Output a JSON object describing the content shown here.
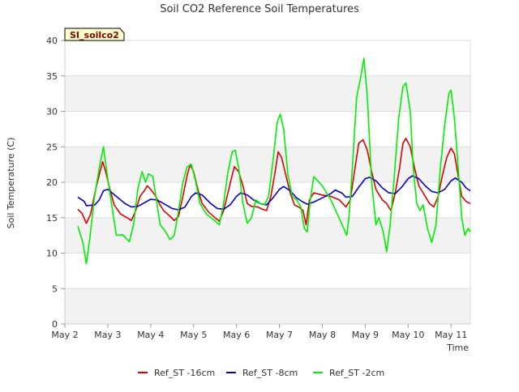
{
  "chart_data": {
    "type": "line",
    "title": "Soil CO2 Reference Soil Temperatures",
    "xlabel": "Time",
    "ylabel": "Soil Temperature (C)",
    "xlim": [
      2.0,
      11.45
    ],
    "ylim": [
      0,
      40
    ],
    "x_ticks": [
      {
        "value": 2,
        "label": "May 2"
      },
      {
        "value": 3,
        "label": "May 3"
      },
      {
        "value": 4,
        "label": "May 4"
      },
      {
        "value": 5,
        "label": "May 5"
      },
      {
        "value": 6,
        "label": "May 6"
      },
      {
        "value": 7,
        "label": "May 7"
      },
      {
        "value": 8,
        "label": "May 8"
      },
      {
        "value": 9,
        "label": "May 9"
      },
      {
        "value": 10,
        "label": "May 10"
      },
      {
        "value": 11,
        "label": "May 11"
      }
    ],
    "y_ticks": [
      0,
      5,
      10,
      15,
      20,
      25,
      30,
      35,
      40
    ],
    "grid": true,
    "banded_background": true,
    "site_label": "SI_soilco2",
    "legend_position": "bottom",
    "series": [
      {
        "name": "Ref_ST -16cm",
        "color": "#dd0000",
        "points": [
          [
            2.3,
            16.2
          ],
          [
            2.4,
            15.6
          ],
          [
            2.5,
            14.2
          ],
          [
            2.6,
            15.5
          ],
          [
            2.7,
            18.5
          ],
          [
            2.8,
            21.0
          ],
          [
            2.88,
            22.9
          ],
          [
            2.95,
            21.5
          ],
          [
            3.05,
            19.0
          ],
          [
            3.15,
            16.8
          ],
          [
            3.3,
            15.5
          ],
          [
            3.45,
            15.0
          ],
          [
            3.55,
            14.6
          ],
          [
            3.65,
            16.0
          ],
          [
            3.75,
            18.0
          ],
          [
            3.85,
            18.8
          ],
          [
            3.92,
            19.5
          ],
          [
            4.0,
            19.0
          ],
          [
            4.1,
            18.2
          ],
          [
            4.2,
            17.0
          ],
          [
            4.3,
            16.0
          ],
          [
            4.45,
            15.2
          ],
          [
            4.55,
            14.6
          ],
          [
            4.65,
            15.2
          ],
          [
            4.75,
            18.0
          ],
          [
            4.85,
            21.0
          ],
          [
            4.92,
            22.5
          ],
          [
            5.0,
            21.5
          ],
          [
            5.1,
            19.0
          ],
          [
            5.2,
            17.0
          ],
          [
            5.35,
            15.8
          ],
          [
            5.5,
            15.0
          ],
          [
            5.6,
            14.5
          ],
          [
            5.7,
            16.0
          ],
          [
            5.8,
            18.5
          ],
          [
            5.88,
            20.5
          ],
          [
            5.95,
            22.2
          ],
          [
            6.05,
            21.5
          ],
          [
            6.15,
            19.5
          ],
          [
            6.25,
            17.0
          ],
          [
            6.35,
            16.6
          ],
          [
            6.5,
            16.5
          ],
          [
            6.6,
            16.2
          ],
          [
            6.7,
            16.0
          ],
          [
            6.8,
            18.0
          ],
          [
            6.9,
            21.5
          ],
          [
            6.97,
            24.3
          ],
          [
            7.05,
            23.5
          ],
          [
            7.15,
            21.0
          ],
          [
            7.25,
            18.5
          ],
          [
            7.35,
            16.8
          ],
          [
            7.45,
            16.5
          ],
          [
            7.55,
            16.0
          ],
          [
            7.62,
            14.0
          ],
          [
            7.7,
            17.5
          ],
          [
            7.8,
            18.5
          ],
          [
            8.0,
            18.2
          ],
          [
            8.2,
            18.0
          ],
          [
            8.4,
            17.5
          ],
          [
            8.55,
            16.5
          ],
          [
            8.65,
            17.5
          ],
          [
            8.75,
            21.5
          ],
          [
            8.85,
            25.5
          ],
          [
            8.95,
            26.0
          ],
          [
            9.05,
            24.5
          ],
          [
            9.15,
            21.5
          ],
          [
            9.25,
            19.0
          ],
          [
            9.4,
            17.5
          ],
          [
            9.5,
            17.0
          ],
          [
            9.6,
            16.0
          ],
          [
            9.7,
            18.5
          ],
          [
            9.8,
            22.0
          ],
          [
            9.88,
            25.5
          ],
          [
            9.95,
            26.2
          ],
          [
            10.05,
            25.0
          ],
          [
            10.15,
            22.0
          ],
          [
            10.25,
            19.5
          ],
          [
            10.4,
            18.0
          ],
          [
            10.5,
            17.0
          ],
          [
            10.6,
            16.5
          ],
          [
            10.7,
            18.0
          ],
          [
            10.8,
            21.0
          ],
          [
            10.9,
            23.5
          ],
          [
            11.0,
            24.8
          ],
          [
            11.08,
            24.0
          ],
          [
            11.15,
            21.5
          ],
          [
            11.25,
            18.0
          ],
          [
            11.35,
            17.3
          ],
          [
            11.45,
            17.0
          ]
        ]
      },
      {
        "name": "Ref_ST -8cm",
        "color": "#0000cc",
        "points": [
          [
            2.3,
            17.9
          ],
          [
            2.45,
            17.3
          ],
          [
            2.5,
            16.7
          ],
          [
            2.7,
            16.8
          ],
          [
            2.8,
            17.5
          ],
          [
            2.9,
            18.8
          ],
          [
            3.0,
            19.0
          ],
          [
            3.2,
            18.0
          ],
          [
            3.4,
            17.0
          ],
          [
            3.55,
            16.5
          ],
          [
            3.7,
            16.6
          ],
          [
            3.85,
            17.1
          ],
          [
            4.0,
            17.6
          ],
          [
            4.15,
            17.5
          ],
          [
            4.3,
            17.0
          ],
          [
            4.5,
            16.3
          ],
          [
            4.65,
            16.1
          ],
          [
            4.8,
            16.5
          ],
          [
            4.95,
            18.0
          ],
          [
            5.05,
            18.5
          ],
          [
            5.2,
            18.2
          ],
          [
            5.4,
            17.0
          ],
          [
            5.55,
            16.3
          ],
          [
            5.7,
            16.2
          ],
          [
            5.85,
            16.8
          ],
          [
            6.0,
            18.0
          ],
          [
            6.1,
            18.5
          ],
          [
            6.25,
            18.2
          ],
          [
            6.4,
            17.5
          ],
          [
            6.55,
            17.0
          ],
          [
            6.7,
            16.8
          ],
          [
            6.85,
            17.8
          ],
          [
            7.0,
            19.0
          ],
          [
            7.1,
            19.4
          ],
          [
            7.25,
            18.8
          ],
          [
            7.4,
            17.8
          ],
          [
            7.55,
            17.2
          ],
          [
            7.65,
            16.9
          ],
          [
            7.8,
            17.2
          ],
          [
            8.0,
            17.8
          ],
          [
            8.2,
            18.4
          ],
          [
            8.3,
            18.9
          ],
          [
            8.45,
            18.5
          ],
          [
            8.55,
            17.9
          ],
          [
            8.7,
            18.0
          ],
          [
            8.85,
            19.3
          ],
          [
            9.0,
            20.5
          ],
          [
            9.1,
            20.7
          ],
          [
            9.25,
            20.2
          ],
          [
            9.4,
            19.2
          ],
          [
            9.55,
            18.5
          ],
          [
            9.7,
            18.4
          ],
          [
            9.85,
            19.3
          ],
          [
            10.0,
            20.5
          ],
          [
            10.1,
            20.9
          ],
          [
            10.25,
            20.5
          ],
          [
            10.4,
            19.5
          ],
          [
            10.55,
            18.7
          ],
          [
            10.7,
            18.5
          ],
          [
            10.85,
            19.0
          ],
          [
            11.0,
            20.2
          ],
          [
            11.1,
            20.6
          ],
          [
            11.25,
            20.0
          ],
          [
            11.35,
            19.2
          ],
          [
            11.45,
            18.8
          ]
        ]
      },
      {
        "name": "Ref_ST -2cm",
        "color": "#00ee00",
        "points": [
          [
            2.3,
            13.8
          ],
          [
            2.42,
            11.5
          ],
          [
            2.5,
            8.5
          ],
          [
            2.58,
            12.0
          ],
          [
            2.68,
            17.5
          ],
          [
            2.8,
            22.0
          ],
          [
            2.9,
            25.0
          ],
          [
            3.0,
            20.5
          ],
          [
            3.1,
            16.5
          ],
          [
            3.2,
            12.5
          ],
          [
            3.35,
            12.6
          ],
          [
            3.5,
            11.6
          ],
          [
            3.6,
            14.0
          ],
          [
            3.7,
            19.0
          ],
          [
            3.8,
            21.5
          ],
          [
            3.88,
            20.0
          ],
          [
            3.95,
            21.2
          ],
          [
            4.05,
            20.8
          ],
          [
            4.12,
            18.0
          ],
          [
            4.22,
            14.0
          ],
          [
            4.35,
            13.0
          ],
          [
            4.45,
            11.9
          ],
          [
            4.55,
            12.5
          ],
          [
            4.65,
            16.0
          ],
          [
            4.75,
            20.0
          ],
          [
            4.85,
            22.2
          ],
          [
            4.95,
            22.5
          ],
          [
            5.05,
            20.0
          ],
          [
            5.15,
            17.0
          ],
          [
            5.3,
            15.5
          ],
          [
            5.45,
            14.8
          ],
          [
            5.6,
            14.0
          ],
          [
            5.7,
            17.0
          ],
          [
            5.8,
            21.5
          ],
          [
            5.9,
            24.3
          ],
          [
            5.97,
            24.5
          ],
          [
            6.05,
            22.0
          ],
          [
            6.15,
            17.0
          ],
          [
            6.25,
            14.2
          ],
          [
            6.35,
            15.0
          ],
          [
            6.45,
            17.5
          ],
          [
            6.55,
            17.0
          ],
          [
            6.65,
            16.8
          ],
          [
            6.75,
            18.0
          ],
          [
            6.85,
            23.0
          ],
          [
            6.95,
            28.5
          ],
          [
            7.02,
            29.6
          ],
          [
            7.1,
            27.5
          ],
          [
            7.2,
            21.0
          ],
          [
            7.3,
            18.0
          ],
          [
            7.4,
            17.5
          ],
          [
            7.5,
            16.5
          ],
          [
            7.58,
            13.5
          ],
          [
            7.65,
            13.0
          ],
          [
            7.72,
            17.5
          ],
          [
            7.8,
            20.8
          ],
          [
            8.0,
            19.5
          ],
          [
            8.2,
            17.5
          ],
          [
            8.35,
            15.5
          ],
          [
            8.5,
            13.5
          ],
          [
            8.57,
            12.5
          ],
          [
            8.62,
            15.0
          ],
          [
            8.7,
            22.0
          ],
          [
            8.8,
            32.0
          ],
          [
            8.9,
            35.0
          ],
          [
            8.97,
            37.5
          ],
          [
            9.05,
            32.0
          ],
          [
            9.15,
            20.0
          ],
          [
            9.25,
            14.0
          ],
          [
            9.32,
            15.0
          ],
          [
            9.42,
            13.0
          ],
          [
            9.5,
            10.2
          ],
          [
            9.58,
            14.0
          ],
          [
            9.68,
            21.0
          ],
          [
            9.78,
            29.0
          ],
          [
            9.88,
            33.5
          ],
          [
            9.95,
            34.0
          ],
          [
            10.05,
            30.0
          ],
          [
            10.12,
            22.0
          ],
          [
            10.2,
            17.0
          ],
          [
            10.28,
            16.0
          ],
          [
            10.35,
            16.8
          ],
          [
            10.45,
            13.5
          ],
          [
            10.55,
            11.5
          ],
          [
            10.65,
            14.0
          ],
          [
            10.75,
            22.0
          ],
          [
            10.85,
            28.0
          ],
          [
            10.95,
            32.5
          ],
          [
            11.0,
            33.0
          ],
          [
            11.08,
            29.0
          ],
          [
            11.18,
            21.0
          ],
          [
            11.25,
            15.0
          ],
          [
            11.32,
            12.5
          ],
          [
            11.4,
            13.5
          ],
          [
            11.45,
            13.0
          ]
        ]
      }
    ]
  }
}
